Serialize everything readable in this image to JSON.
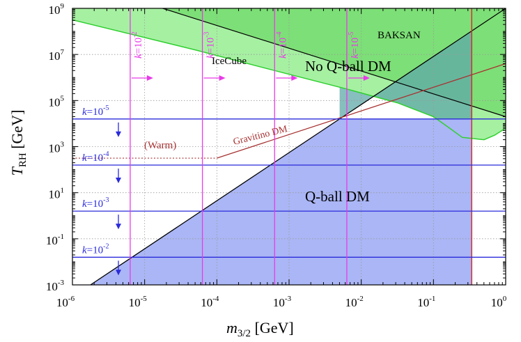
{
  "chart_data": {
    "type": "line",
    "title": "",
    "xlabel": {
      "main": "m",
      "sub": "3/2",
      "unit": " [GeV]"
    },
    "ylabel": {
      "main": "T",
      "sub": "RH",
      "unit": " [GeV]"
    },
    "x_log10_range": [
      -6,
      0
    ],
    "y_log10_range": [
      -3,
      9
    ],
    "x_ticks": [
      {
        "base": "10",
        "exp": "-6",
        "log": -6
      },
      {
        "base": "10",
        "exp": "-5",
        "log": -5
      },
      {
        "base": "10",
        "exp": "-4",
        "log": -4
      },
      {
        "base": "10",
        "exp": "-3",
        "log": -3
      },
      {
        "base": "10",
        "exp": "-2",
        "log": -2
      },
      {
        "base": "10",
        "exp": "-1",
        "log": -1
      },
      {
        "base": "10",
        "exp": "0",
        "log": 0
      }
    ],
    "y_ticks": [
      {
        "base": "10",
        "exp": "-3",
        "log": -3
      },
      {
        "base": "10",
        "exp": "-1",
        "log": -1
      },
      {
        "base": "10",
        "exp": "1",
        "log": 1
      },
      {
        "base": "10",
        "exp": "3",
        "log": 3
      },
      {
        "base": "10",
        "exp": "5",
        "log": 5
      },
      {
        "base": "10",
        "exp": "7",
        "log": 7
      },
      {
        "base": "10",
        "exp": "9",
        "log": 9
      }
    ],
    "colors": {
      "qball_fill": "#aab6f5",
      "nonqball_fill": "#a6f0a2",
      "baksan_fill": "#7ddf77",
      "overlap_fill": "#5fa8a8",
      "magenta": "#e83ae8",
      "blue": "#2b2bdb",
      "green_line": "#30d030",
      "red_line": "#d63030",
      "gravitino": "#a83232",
      "black": "#000000"
    },
    "qball_boundary": {
      "name": "Q-ball DM boundary",
      "x_log": [
        -5.75,
        0
      ],
      "y_log": [
        -3,
        9
      ]
    },
    "horizontal_lines": [
      {
        "k": "10",
        "exp": "-5",
        "y_log": 4.2
      },
      {
        "k": "10",
        "exp": "-4",
        "y_log": 2.2
      },
      {
        "k": "10",
        "exp": "-3",
        "y_log": 0.2
      },
      {
        "k": "10",
        "exp": "-2",
        "y_log": -1.8
      }
    ],
    "vertical_lines": [
      {
        "k": "10",
        "exp": "-2",
        "x_log": -5.2
      },
      {
        "k": "10",
        "exp": "-3",
        "x_log": -4.2
      },
      {
        "k": "10",
        "exp": "-4",
        "x_log": -3.2
      },
      {
        "k": "10",
        "exp": "-5",
        "x_log": -2.2
      }
    ],
    "icecube_boundary": {
      "x_log": [
        -6,
        -4.3,
        -3.2,
        -2.2,
        -1.5,
        -1,
        -0.82,
        -0.6,
        -0.3,
        -0.15,
        0
      ],
      "y_log": [
        8.5,
        7.2,
        6.3,
        5.5,
        4.9,
        4.3,
        3.9,
        3.4,
        3.3,
        3.5,
        3.8
      ]
    },
    "baksan_boundary": {
      "x_log": [
        -4.75,
        0
      ],
      "y_log": [
        9,
        4.3
      ]
    },
    "red_line": {
      "x_log": -0.47
    },
    "gravitino_line": {
      "x_log": [
        -4,
        0
      ],
      "y_log": [
        2.5,
        6.6
      ]
    },
    "warm_line": {
      "x_log": [
        -6,
        -4
      ],
      "y_log": [
        2.5,
        2.5
      ]
    },
    "annotations": {
      "baksan": "BAKSAN",
      "icecube": "IceCube",
      "no_qball": "No Q-ball DM",
      "qball": "Q-ball DM",
      "gravitino": "Gravitino DM",
      "warm": "(Warm)"
    }
  }
}
